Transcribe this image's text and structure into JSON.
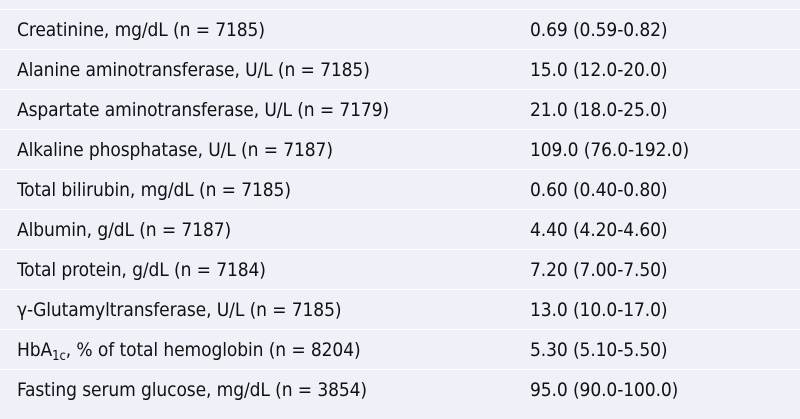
{
  "rows": [
    {
      "label": "Creatinine, mg/dL (n = 7185)",
      "value": "0.69 (0.59-0.82)"
    },
    {
      "label": "Alanine aminotransferase, U/L (n = 7185)",
      "value": "15.0 (12.0-20.0)"
    },
    {
      "label": "Aspartate aminotransferase, U/L (n = 7179)",
      "value": "21.0 (18.0-25.0)"
    },
    {
      "label": "Alkaline phosphatase, U/L (n = 7187)",
      "value": "109.0 (76.0-192.0)"
    },
    {
      "label": "Total bilirubin, mg/dL (n = 7185)",
      "value": "0.60 (0.40-0.80)"
    },
    {
      "label": "Albumin, g/dL (n = 7187)",
      "value": "4.40 (4.20-4.60)"
    },
    {
      "label": "Total protein, g/dL (n = 7184)",
      "value": "7.20 (7.00-7.50)"
    },
    {
      "label": "γ-Glutamyltransferase, U/L (n = 7185)",
      "value": "13.0 (10.0-17.0)"
    },
    {
      "label_main": "HbA",
      "label_sub": "1c",
      "label_rest": ", % of total hemoglobin (n = 8204)",
      "value": "5.30 (5.10-5.50)"
    },
    {
      "label": "Fasting serum glucose, mg/dL (n = 3854)",
      "value": "95.0 (90.0-100.0)"
    }
  ]
}
